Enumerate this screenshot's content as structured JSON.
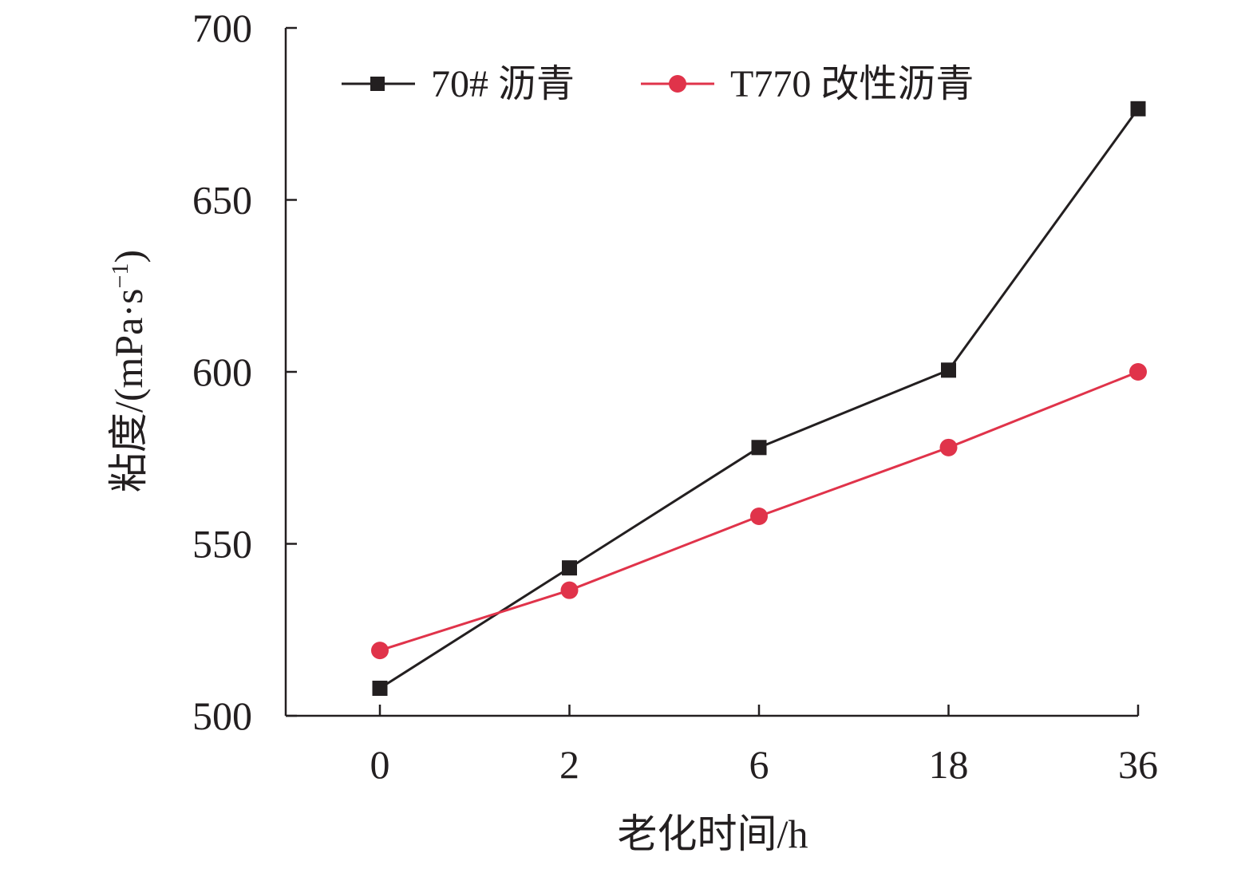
{
  "chart_data": {
    "type": "line",
    "categories": [
      "0",
      "2",
      "6",
      "18",
      "36"
    ],
    "series": [
      {
        "name": "70# 沥青",
        "values": [
          508,
          543,
          578,
          600.5,
          676.5
        ],
        "color": "#231f20",
        "marker": "square"
      },
      {
        "name": "T770 改性沥青",
        "values": [
          519,
          536.5,
          558,
          578,
          600
        ],
        "color": "#e0334a",
        "marker": "circle"
      }
    ],
    "xlabel": "老化时间/h",
    "ylabel": "粘度/(mPa·s",
    "ylabel_sup": "−1",
    "ylabel_close": ")",
    "ylim": [
      500,
      700
    ],
    "yticks": [
      500,
      550,
      600,
      650,
      700
    ],
    "grid": false,
    "legend_position": "top"
  }
}
